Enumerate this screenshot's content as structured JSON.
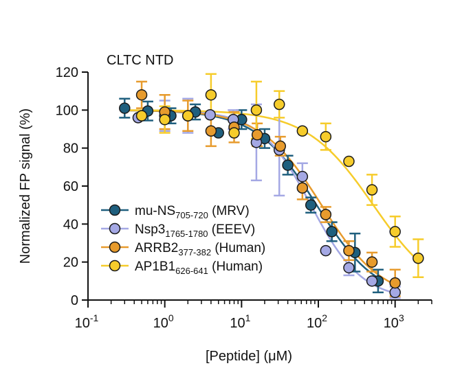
{
  "chart_data": {
    "type": "scatter",
    "title": "CLTC NTD",
    "xlabel": "[Peptide] (μM)",
    "ylabel": "Normalized FP signal (%)",
    "xscale": "log",
    "xlim": [
      0.1,
      3000
    ],
    "ylim": [
      0,
      120
    ],
    "x_ticks": [
      {
        "value": 0.1,
        "base": "10",
        "exp": "-1"
      },
      {
        "value": 1,
        "base": "10",
        "exp": "0"
      },
      {
        "value": 10,
        "base": "10",
        "exp": "1"
      },
      {
        "value": 100,
        "base": "10",
        "exp": "2"
      },
      {
        "value": 1000,
        "base": "10",
        "exp": "3"
      }
    ],
    "y_ticks": [
      "0",
      "20",
      "40",
      "60",
      "80",
      "100",
      "120"
    ],
    "grid": false,
    "legend_position": "bottom-left",
    "series": [
      {
        "name": "mu-NS",
        "subscript": "705-720",
        "suffix": " (MRV)",
        "color": "#1f5f7e",
        "ic50": 95,
        "hill": 1.1,
        "top": 100,
        "bottom": 0,
        "points": [
          {
            "x": 0.3,
            "y": 101,
            "err": 5
          },
          {
            "x": 0.6,
            "y": 99.5,
            "err": 5
          },
          {
            "x": 1.2,
            "y": 97,
            "err": 4
          },
          {
            "x": 2.5,
            "y": 99,
            "err": 4
          },
          {
            "x": 5,
            "y": 88,
            "err": 0
          },
          {
            "x": 10,
            "y": 95,
            "err": 5
          },
          {
            "x": 20,
            "y": 85,
            "err": 5
          },
          {
            "x": 40,
            "y": 71,
            "err": 5
          },
          {
            "x": 80,
            "y": 50,
            "err": 4
          },
          {
            "x": 150,
            "y": 36,
            "err": 5
          },
          {
            "x": 300,
            "y": 25,
            "err": 10
          },
          {
            "x": 600,
            "y": 10,
            "err": 6
          }
        ]
      },
      {
        "name": "Nsp3",
        "subscript": "1765-1780",
        "suffix": " (EEEV)",
        "color": "#a4a8e4",
        "ic50": 80,
        "hill": 1.3,
        "top": 100,
        "bottom": 0,
        "points": [
          {
            "x": 0.45,
            "y": 96,
            "err": 0
          },
          {
            "x": 1,
            "y": 97,
            "err": 8
          },
          {
            "x": 2,
            "y": 97,
            "err": 9
          },
          {
            "x": 3.9,
            "y": 97.5,
            "err": 0
          },
          {
            "x": 7.8,
            "y": 95,
            "err": 5
          },
          {
            "x": 15.6,
            "y": 83,
            "err": 20
          },
          {
            "x": 31,
            "y": 79,
            "err": 24
          },
          {
            "x": 62,
            "y": 65,
            "err": 7
          },
          {
            "x": 125,
            "y": 26,
            "err": 0
          },
          {
            "x": 250,
            "y": 17,
            "err": 4
          },
          {
            "x": 500,
            "y": 10,
            "err": 0
          },
          {
            "x": 1000,
            "y": 4,
            "err": 3
          }
        ]
      },
      {
        "name": "ARRB2",
        "subscript": "377-382",
        "suffix": " (Human)",
        "color": "#e79b2d",
        "ic50": 110,
        "hill": 1.1,
        "top": 100,
        "bottom": 0,
        "points": [
          {
            "x": 0.5,
            "y": 108,
            "err": 7
          },
          {
            "x": 1,
            "y": 99,
            "err": 9
          },
          {
            "x": 2,
            "y": 97,
            "err": 8
          },
          {
            "x": 4,
            "y": 89,
            "err": 8
          },
          {
            "x": 8,
            "y": 91,
            "err": 8
          },
          {
            "x": 16,
            "y": 87,
            "err": 6
          },
          {
            "x": 32,
            "y": 81,
            "err": 5
          },
          {
            "x": 62,
            "y": 59,
            "err": 6
          },
          {
            "x": 125,
            "y": 45,
            "err": 4
          },
          {
            "x": 250,
            "y": 26,
            "err": 5
          },
          {
            "x": 500,
            "y": 20,
            "err": 5
          },
          {
            "x": 1000,
            "y": 9,
            "err": 7
          }
        ]
      },
      {
        "name": "AP1B1",
        "subscript": "626-641",
        "suffix": " (Human)",
        "color": "#f6cc2b",
        "ic50": 520,
        "hill": 1.0,
        "top": 100,
        "bottom": 0,
        "points": [
          {
            "x": 0.5,
            "y": 97,
            "err": 0
          },
          {
            "x": 1,
            "y": 95,
            "err": 7
          },
          {
            "x": 2,
            "y": 97,
            "err": 0
          },
          {
            "x": 4,
            "y": 108,
            "err": 11
          },
          {
            "x": 8,
            "y": 88,
            "err": 0
          },
          {
            "x": 15.6,
            "y": 100,
            "err": 15
          },
          {
            "x": 31,
            "y": 103,
            "err": 7
          },
          {
            "x": 62,
            "y": 89,
            "err": 0
          },
          {
            "x": 125,
            "y": 86,
            "err": 7
          },
          {
            "x": 250,
            "y": 73,
            "err": 0
          },
          {
            "x": 500,
            "y": 58,
            "err": 8
          },
          {
            "x": 1000,
            "y": 36,
            "err": 8
          },
          {
            "x": 2000,
            "y": 22,
            "err": 10
          }
        ]
      }
    ]
  }
}
